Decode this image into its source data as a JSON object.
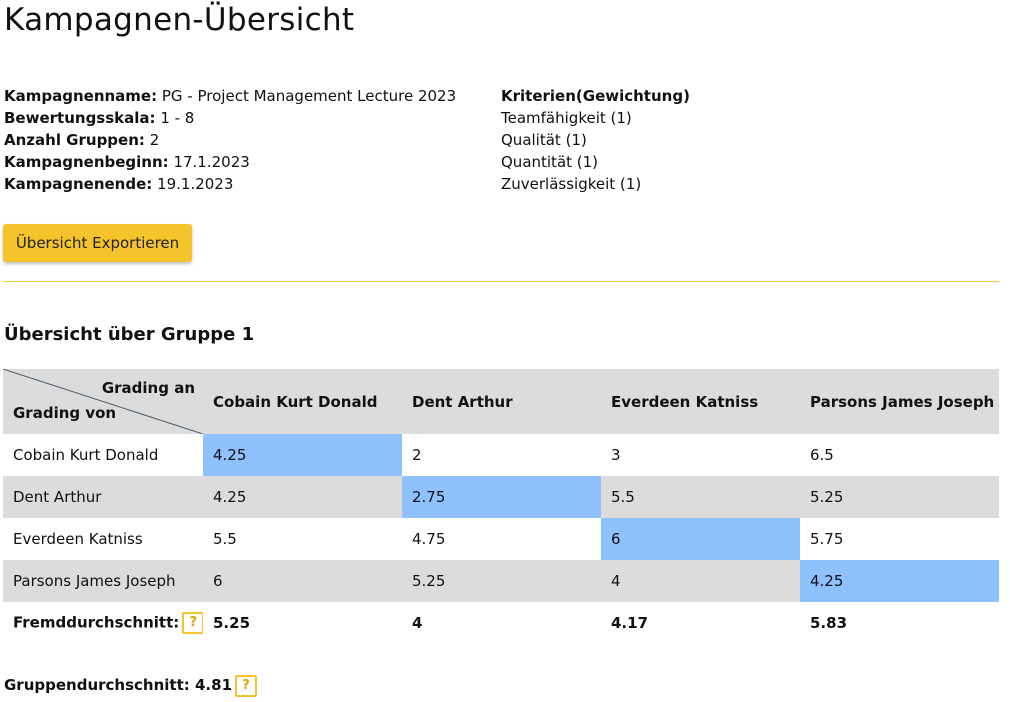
{
  "title": "Kampagnen-Übersicht",
  "campaign": {
    "name_label": "Kampagnenname:",
    "name": "PG - Project Management Lecture 2023",
    "scale_label": "Bewertungsskala:",
    "scale": "1 - 8",
    "groups_label": "Anzahl Gruppen:",
    "groups": "2",
    "start_label": "Kampagnenbeginn:",
    "start": "17.1.2023",
    "end_label": "Kampagnenende:",
    "end": "19.1.2023"
  },
  "criteria": {
    "heading": "Kriterien(Gewichtung)",
    "items": [
      "Teamfähigkeit (1)",
      "Qualität (1)",
      "Quantität (1)",
      "Zuverlässigkeit (1)"
    ]
  },
  "export_button_label": "Übersicht Exportieren",
  "group": {
    "title": "Übersicht über Gruppe 1",
    "corner_to": "Grading an",
    "corner_from": "Grading von",
    "columns": [
      "Cobain Kurt Donald",
      "Dent Arthur",
      "Everdeen Katniss",
      "Parsons James Joseph"
    ],
    "rows": [
      {
        "name": "Cobain Kurt Donald",
        "values": [
          "4.25",
          "2",
          "3",
          "6.5"
        ]
      },
      {
        "name": "Dent Arthur",
        "values": [
          "4.25",
          "2.75",
          "5.5",
          "5.25"
        ]
      },
      {
        "name": "Everdeen Katniss",
        "values": [
          "5.5",
          "4.75",
          "6",
          "5.75"
        ]
      },
      {
        "name": "Parsons James Joseph",
        "values": [
          "6",
          "5.25",
          "4",
          "4.25"
        ]
      }
    ],
    "external_avg_label": "Fremddurchschnitt:",
    "external_avg": [
      "5.25",
      "4",
      "4.17",
      "5.83"
    ],
    "help_glyph": "?",
    "group_avg_label": "Gruppendurchschnitt:",
    "group_avg": "4.81"
  },
  "colors": {
    "accent": "#f5c42c",
    "self_cell": "#8fc1ff",
    "row_stripe": "#dcdcdc"
  }
}
